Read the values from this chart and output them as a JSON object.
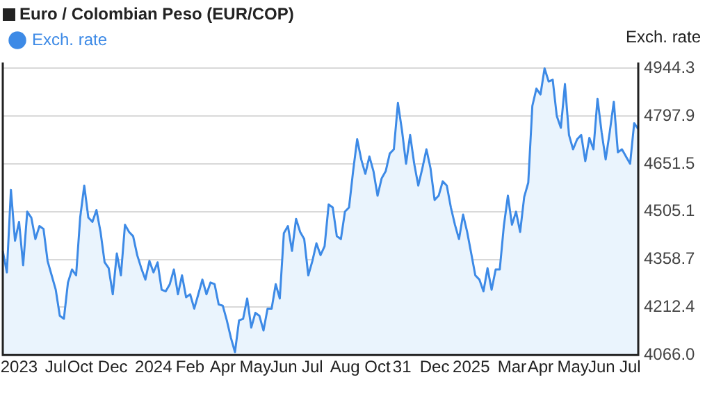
{
  "chart_data": {
    "type": "area",
    "title": "Euro / Colombian Peso (EUR/COP)",
    "ylabel": "Exch. rate",
    "categories": [
      null,
      null,
      null,
      null,
      "2023",
      null,
      null,
      null,
      null,
      null,
      null,
      null,
      null,
      "Jul",
      null,
      null,
      null,
      null,
      null,
      "Oct",
      null,
      null,
      null,
      null,
      null,
      null,
      null,
      "Dec",
      null,
      null,
      null,
      null,
      null,
      null,
      null,
      null,
      null,
      "2024",
      null,
      null,
      null,
      null,
      null,
      null,
      null,
      null,
      "Feb",
      null,
      null,
      null,
      null,
      null,
      null,
      null,
      "Apr",
      null,
      null,
      null,
      null,
      null,
      null,
      null,
      "May",
      null,
      null,
      null,
      null,
      null,
      null,
      "Jun",
      null,
      null,
      null,
      null,
      null,
      null,
      "Jul",
      null,
      null,
      null,
      null,
      null,
      null,
      null,
      "Aug",
      null,
      null,
      null,
      null,
      null,
      null,
      null,
      "Oct",
      null,
      null,
      null,
      null,
      null,
      "31",
      null,
      null,
      null,
      null,
      null,
      null,
      null,
      "Dec",
      null,
      null,
      null,
      null,
      null,
      null,
      null,
      null,
      "2025",
      null,
      null,
      null,
      null,
      null,
      null,
      null,
      null,
      null,
      "Mar",
      null,
      null,
      null,
      null,
      null,
      null,
      "Apr",
      null,
      null,
      null,
      null,
      null,
      null,
      null,
      "May",
      null,
      null,
      null,
      null,
      null,
      null,
      "Jun",
      null,
      null,
      null,
      null,
      null,
      null,
      "Jul",
      null,
      null
    ],
    "series": [
      {
        "name": "Exch. rate",
        "color": "#3d8ae6",
        "values": [
          4385,
          4319,
          4572,
          4416,
          4474,
          4341,
          4505,
          4487,
          4421,
          4461,
          4452,
          4354,
          4310,
          4266,
          4186,
          4177,
          4288,
          4328,
          4310,
          4487,
          4585,
          4487,
          4474,
          4510,
          4443,
          4350,
          4332,
          4252,
          4377,
          4310,
          4465,
          4443,
          4430,
          4372,
          4332,
          4297,
          4354,
          4319,
          4350,
          4266,
          4261,
          4283,
          4328,
          4252,
          4310,
          4243,
          4252,
          4208,
          4252,
          4297,
          4252,
          4288,
          4283,
          4221,
          4217,
          4172,
          4119,
          4075,
          4172,
          4177,
          4239,
          4150,
          4195,
          4186,
          4141,
          4208,
          4208,
          4283,
          4239,
          4439,
          4461,
          4385,
          4483,
          4443,
          4421,
          4310,
          4354,
          4408,
          4372,
          4399,
          4527,
          4518,
          4430,
          4421,
          4505,
          4518,
          4629,
          4727,
          4665,
          4621,
          4674,
          4629,
          4554,
          4607,
          4629,
          4683,
          4696,
          4838,
          4754,
          4652,
          4740,
          4652,
          4585,
          4638,
          4696,
          4638,
          4541,
          4554,
          4598,
          4585,
          4518,
          4465,
          4421,
          4496,
          4443,
          4377,
          4310,
          4297,
          4261,
          4332,
          4266,
          4328,
          4328,
          4461,
          4554,
          4465,
          4505,
          4443,
          4550,
          4594,
          4829,
          4882,
          4864,
          4944,
          4904,
          4909,
          4798,
          4762,
          4896,
          4740,
          4696,
          4727,
          4740,
          4660,
          4731,
          4696,
          4851,
          4749,
          4665,
          4749,
          4842,
          4687,
          4696,
          4674,
          4652,
          4776,
          4758
        ]
      }
    ],
    "ylim": [
      4066.0,
      4962
    ],
    "yticks": [
      {
        "value": 4066.0,
        "label": "4066.0"
      },
      {
        "value": 4212.4,
        "label": "4212.4"
      },
      {
        "value": 4358.7,
        "label": "4358.7"
      },
      {
        "value": 4505.1,
        "label": "4505.1"
      },
      {
        "value": 4651.5,
        "label": "4651.5"
      },
      {
        "value": 4797.9,
        "label": "4797.9"
      },
      {
        "value": 4944.3,
        "label": "4944.3"
      }
    ],
    "grid": "y",
    "legend": "top left",
    "marker": "none",
    "line_style": "solid"
  }
}
